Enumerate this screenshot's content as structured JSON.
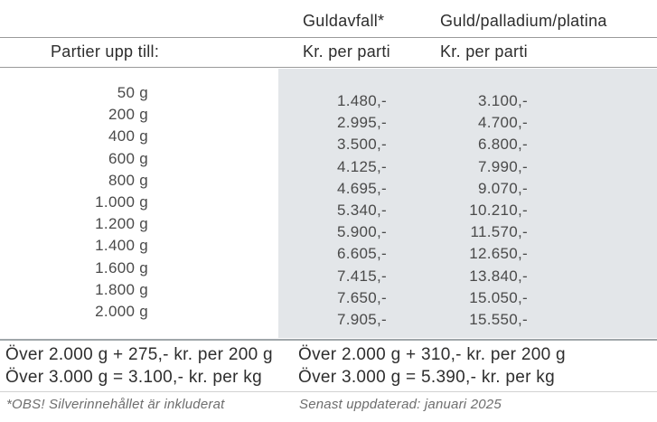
{
  "page": {
    "panel_color": "#e3e6e9"
  },
  "table": {
    "row_label_header": "Partier upp till:",
    "columns": [
      {
        "title": "Guldavfall*",
        "subtitle": "Kr. per parti"
      },
      {
        "title": "Guld/palladium/platina",
        "subtitle": "Kr. per parti"
      }
    ],
    "rows": [
      {
        "weight": "50 g",
        "guldavfall": "1.480,-",
        "guld": "3.100,-"
      },
      {
        "weight": "200 g",
        "guldavfall": "2.995,-",
        "guld": "4.700,-"
      },
      {
        "weight": "400 g",
        "guldavfall": "3.500,-",
        "guld": "6.800,-"
      },
      {
        "weight": "600 g",
        "guldavfall": "4.125,-",
        "guld": "7.990,-"
      },
      {
        "weight": "800 g",
        "guldavfall": "4.695,-",
        "guld": "9.070,-"
      },
      {
        "weight": "1.000 g",
        "guldavfall": "5.340,-",
        "guld": "10.210,-"
      },
      {
        "weight": "1.200 g",
        "guldavfall": "5.900,-",
        "guld": "11.570,-"
      },
      {
        "weight": "1.400 g",
        "guldavfall": "6.605,-",
        "guld": "12.650,-"
      },
      {
        "weight": "1.600 g",
        "guldavfall": "7.415,-",
        "guld": "13.840,-"
      },
      {
        "weight": "1.800 g",
        "guldavfall": "7.650,-",
        "guld": "15.050,-"
      },
      {
        "weight": "2.000 g",
        "guldavfall": "7.905,-",
        "guld": "15.550,-"
      }
    ]
  },
  "footer": {
    "guldavfall_over_2000": "Över 2.000 g + 275,- kr. per 200 g",
    "guldavfall_over_3000": "Över 3.000 g = 3.100,- kr. per kg",
    "guld_over_2000": "Över 2.000 g + 310,- kr. per 200 g",
    "guld_over_3000": "Över 3.000 g = 5.390,- kr. per kg",
    "note_silver": "*OBS! Silverinnehållet är inkluderat",
    "note_updated": "Senast uppdaterad: januari 2025"
  }
}
